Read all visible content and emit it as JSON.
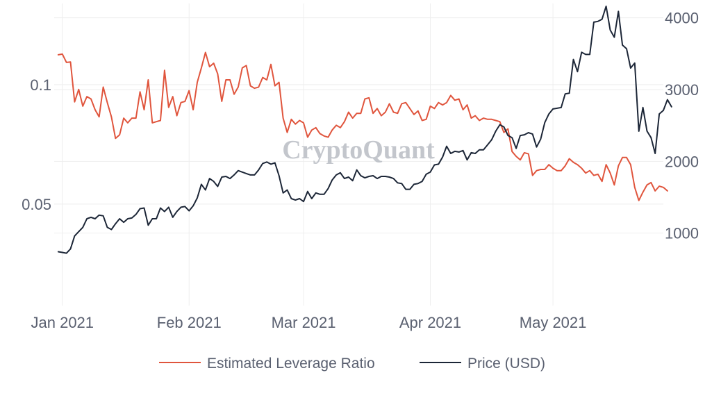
{
  "watermark": "CryptoQuant",
  "colors": {
    "leverage": "#e0553d",
    "price": "#1c2637",
    "grid": "#eeeeee",
    "tick_text": "#5a6070"
  },
  "chart_data": {
    "type": "line",
    "x_tick_labels": [
      "Jan 2021",
      "Feb 2021",
      "Mar 2021",
      "Apr 2021",
      "May 2021"
    ],
    "x_tick_days": [
      0,
      31,
      59,
      90,
      120
    ],
    "x_range_days": [
      -2,
      147
    ],
    "y_left": {
      "ticks": [
        0.05,
        0.1
      ],
      "tick_labels": [
        "0.05",
        "0.1"
      ],
      "range": [
        0.0075,
        0.134
      ]
    },
    "y_right": {
      "ticks": [
        1000,
        2000,
        3000,
        4000
      ],
      "tick_labels": [
        "1000",
        "2000",
        "3000",
        "4000"
      ],
      "range": [
        -10,
        4200
      ]
    },
    "grid": true,
    "legend_position": "bottom-center",
    "series": [
      {
        "name": "Estimated Leverage Ratio",
        "axis": "left",
        "values": [
          0.1125,
          0.1128,
          0.1093,
          0.1095,
          0.0928,
          0.098,
          0.091,
          0.095,
          0.094,
          0.0895,
          0.0865,
          0.099,
          0.0925,
          0.0865,
          0.0775,
          0.079,
          0.086,
          0.084,
          0.086,
          0.086,
          0.097,
          0.0895,
          0.102,
          0.084,
          0.0845,
          0.085,
          0.106,
          0.0905,
          0.095,
          0.087,
          0.0925,
          0.093,
          0.0975,
          0.0895,
          0.101,
          0.107,
          0.1135,
          0.1075,
          0.109,
          0.1045,
          0.093,
          0.102,
          0.102,
          0.096,
          0.099,
          0.107,
          0.108,
          0.0995,
          0.0985,
          0.099,
          0.103,
          0.102,
          0.1085,
          0.0995,
          0.101,
          0.086,
          0.08,
          0.0855,
          0.0835,
          0.085,
          0.084,
          0.078,
          0.081,
          0.082,
          0.0795,
          0.0785,
          0.078,
          0.081,
          0.083,
          0.082,
          0.0845,
          0.0885,
          0.086,
          0.088,
          0.088,
          0.094,
          0.0945,
          0.088,
          0.09,
          0.087,
          0.0885,
          0.092,
          0.0885,
          0.088,
          0.092,
          0.0925,
          0.09,
          0.0875,
          0.089,
          0.085,
          0.0855,
          0.091,
          0.09,
          0.0925,
          0.0915,
          0.0925,
          0.0955,
          0.0935,
          0.094,
          0.0895,
          0.0915,
          0.086,
          0.087,
          0.085,
          0.086,
          0.0855,
          0.0855,
          0.085,
          0.0845,
          0.08,
          0.0815,
          0.072,
          0.07,
          0.0685,
          0.0715,
          0.071,
          0.062,
          0.064,
          0.0645,
          0.0645,
          0.0665,
          0.065,
          0.064,
          0.064,
          0.066,
          0.069,
          0.0675,
          0.0665,
          0.065,
          0.063,
          0.064,
          0.062,
          0.0625,
          0.0595,
          0.0665,
          0.063,
          0.058,
          0.066,
          0.0695,
          0.0695,
          0.0665,
          0.057,
          0.0515,
          0.055,
          0.058,
          0.059,
          0.0555,
          0.0575,
          0.057,
          0.0555
        ]
      },
      {
        "name": "Price (USD)",
        "axis": "right",
        "values": [
          740,
          730,
          720,
          780,
          960,
          1020,
          1080,
          1200,
          1220,
          1200,
          1250,
          1240,
          1080,
          1050,
          1130,
          1200,
          1150,
          1200,
          1210,
          1260,
          1340,
          1350,
          1110,
          1200,
          1200,
          1350,
          1300,
          1360,
          1220,
          1300,
          1360,
          1370,
          1310,
          1380,
          1490,
          1680,
          1600,
          1760,
          1720,
          1650,
          1780,
          1790,
          1760,
          1810,
          1870,
          1850,
          1830,
          1810,
          1810,
          1880,
          1970,
          1990,
          1960,
          1980,
          1800,
          1560,
          1600,
          1480,
          1460,
          1480,
          1440,
          1580,
          1480,
          1560,
          1540,
          1540,
          1620,
          1740,
          1810,
          1840,
          1760,
          1780,
          1730,
          1880,
          1800,
          1770,
          1790,
          1800,
          1760,
          1790,
          1790,
          1780,
          1760,
          1700,
          1690,
          1610,
          1610,
          1680,
          1690,
          1720,
          1820,
          1850,
          1950,
          1960,
          2060,
          2210,
          2110,
          2140,
          2130,
          2150,
          2020,
          2120,
          2110,
          2160,
          2160,
          2230,
          2300,
          2420,
          2510,
          2480,
          2360,
          2330,
          2180,
          2360,
          2370,
          2400,
          2380,
          2200,
          2310,
          2540,
          2660,
          2730,
          2740,
          2750,
          2940,
          2950,
          3420,
          3250,
          3520,
          3490,
          3490,
          3940,
          3950,
          3980,
          4160,
          3830,
          3730,
          4090,
          3620,
          3570,
          3300,
          3370,
          2420,
          2750,
          2420,
          2330,
          2110,
          2660,
          2710,
          2860,
          2760
        ]
      }
    ]
  }
}
